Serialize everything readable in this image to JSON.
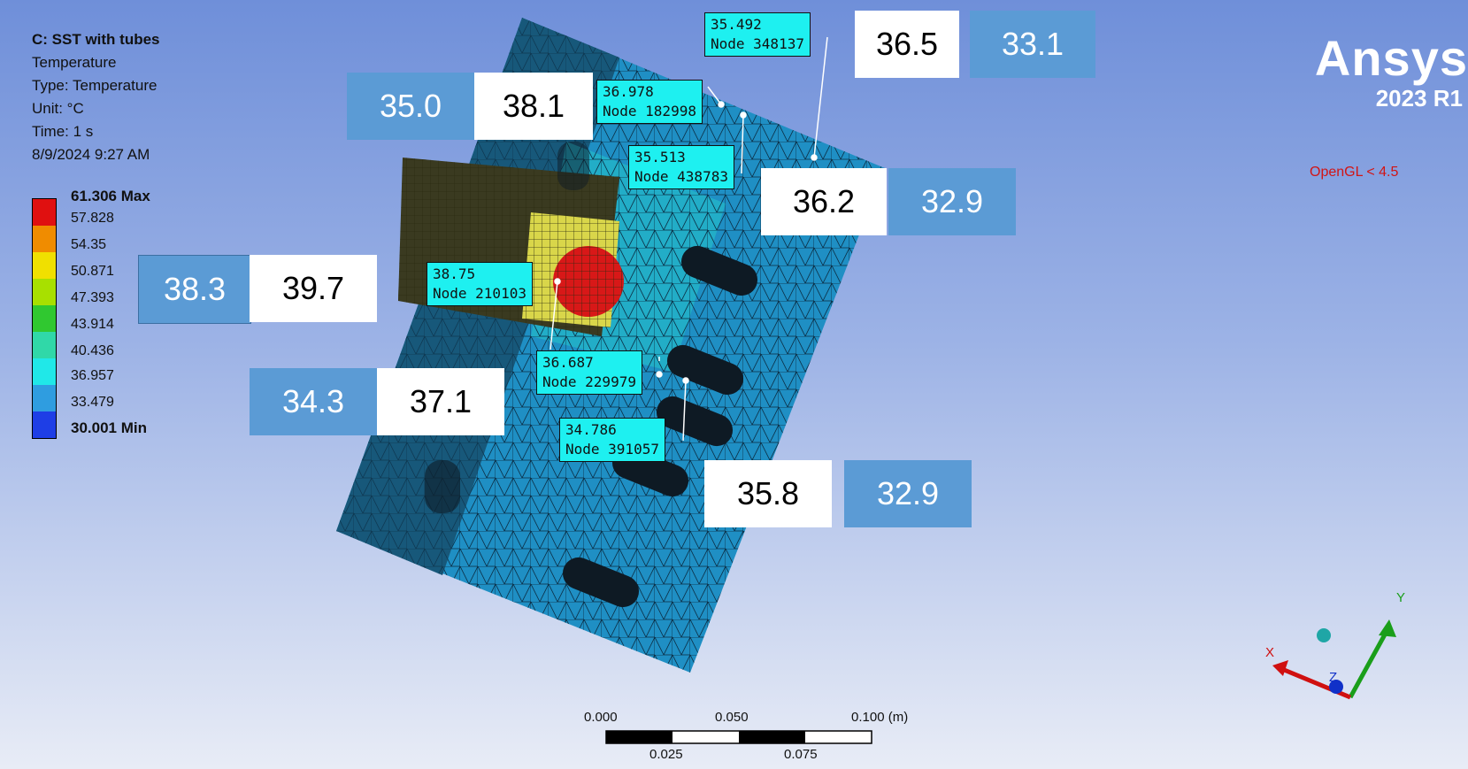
{
  "header": {
    "title": "C: SST with tubes",
    "result": "Temperature",
    "type": "Type: Temperature",
    "unit": "Unit: °C",
    "time": "Time: 1 s",
    "timestamp": "8/9/2024 9:27 AM"
  },
  "legend": {
    "levels": [
      "61.306 Max",
      "57.828",
      "54.35",
      "50.871",
      "47.393",
      "43.914",
      "40.436",
      "36.957",
      "33.479",
      "30.001 Min"
    ],
    "colors": [
      "#e01010",
      "#f08c00",
      "#f0e000",
      "#a8e000",
      "#30c830",
      "#30d8a8",
      "#20e8e8",
      "#2f9de0",
      "#1e3ee6"
    ]
  },
  "brand": {
    "name": "Ansys",
    "version": "2023 R1"
  },
  "renderer": {
    "note": "OpenGL < 4.5"
  },
  "probes": [
    {
      "value": "35.492",
      "node": "Node 348137"
    },
    {
      "value": "36.978",
      "node": "Node 182998"
    },
    {
      "value": "35.513",
      "node": "Node 438783"
    },
    {
      "value": "38.75",
      "node": "Node 210103"
    },
    {
      "value": "36.687",
      "node": "Node 229979"
    },
    {
      "value": "34.786",
      "node": "Node 391057"
    }
  ],
  "value_boxes": {
    "b1": "36.5",
    "b2": "33.1",
    "b3": "35.0",
    "b4": "38.1",
    "b5": "36.2",
    "b6": "32.9",
    "b7": "38.3",
    "b8": "39.7",
    "b9": "34.3",
    "b10": "37.1",
    "b11": "35.8",
    "b12": "32.9"
  },
  "scale_bar": {
    "top": [
      "0.000",
      "0.050",
      "0.100 (m)"
    ],
    "bottom": [
      "0.025",
      "0.075"
    ]
  },
  "triad": {
    "x": "X",
    "y": "Y",
    "z": "Z"
  }
}
